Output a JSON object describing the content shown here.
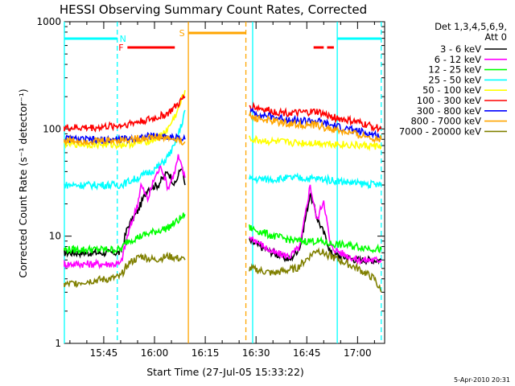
{
  "chart_data": {
    "type": "line",
    "title": "HESSI Observing Summary Count Rates, Corrected",
    "xlabel": "Start Time (27-Jul-05 15:33:22)",
    "ylabel": "Corrected Count Rate (s⁻¹ detector⁻¹)",
    "y_scale": "log",
    "ylim": [
      1,
      1000
    ],
    "xlim_minutes": [
      "15:33:22",
      "17:08"
    ],
    "x_ticks": [
      "15:45",
      "16:00",
      "16:15",
      "16:30",
      "16:45",
      "17:00"
    ],
    "y_ticks": [
      "1",
      "10",
      "100",
      "1000"
    ],
    "date_stamp": "5-Apr-2010 20:31",
    "legend_header": [
      "Det 1,3,4,5,6,9,",
      "Att 0"
    ],
    "legend_position": "right",
    "gaps": [
      {
        "from": "16:10",
        "to": "16:27",
        "reason": "data gap (SAA)"
      }
    ],
    "series": [
      {
        "name": "3 - 6 keV",
        "color": "#000000",
        "points": [
          [
            "15:33",
            7
          ],
          [
            "15:50",
            7
          ],
          [
            "15:52",
            12
          ],
          [
            "15:55",
            17
          ],
          [
            "15:58",
            28
          ],
          [
            "16:01",
            30
          ],
          [
            "16:04",
            40
          ],
          [
            "16:06",
            30
          ],
          [
            "16:08",
            45
          ],
          [
            "16:09",
            30
          ],
          [
            "16:27",
            null
          ],
          [
            "16:28",
            9
          ],
          [
            "16:35",
            7
          ],
          [
            "16:40",
            6
          ],
          [
            "16:43",
            8
          ],
          [
            "16:46",
            25
          ],
          [
            "16:48",
            15
          ],
          [
            "16:51",
            9
          ],
          [
            "16:52",
            7
          ],
          [
            "16:55",
            6.5
          ],
          [
            "17:00",
            6
          ],
          [
            "17:07",
            6
          ]
        ]
      },
      {
        "name": "6 - 12 keV",
        "color": "#ff00ff",
        "points": [
          [
            "15:33",
            5.5
          ],
          [
            "15:50",
            5.5
          ],
          [
            "15:52",
            10
          ],
          [
            "15:55",
            20
          ],
          [
            "15:56",
            30
          ],
          [
            "15:58",
            22
          ],
          [
            "16:00",
            35
          ],
          [
            "16:02",
            45
          ],
          [
            "16:04",
            28
          ],
          [
            "16:06",
            40
          ],
          [
            "16:07",
            55
          ],
          [
            "16:09",
            35
          ],
          [
            "16:27",
            null
          ],
          [
            "16:28",
            10
          ],
          [
            "16:35",
            7
          ],
          [
            "16:40",
            6.5
          ],
          [
            "16:43",
            8
          ],
          [
            "16:46",
            30
          ],
          [
            "16:48",
            14
          ],
          [
            "16:50",
            22
          ],
          [
            "16:52",
            8
          ],
          [
            "16:55",
            7
          ],
          [
            "17:00",
            6
          ],
          [
            "17:07",
            6
          ]
        ]
      },
      {
        "name": "12 - 25 keV",
        "color": "#00ff00",
        "points": [
          [
            "15:33",
            7.5
          ],
          [
            "15:50",
            7.5
          ],
          [
            "15:52",
            9
          ],
          [
            "15:56",
            10
          ],
          [
            "16:00",
            11
          ],
          [
            "16:04",
            12
          ],
          [
            "16:07",
            14
          ],
          [
            "16:09",
            16
          ],
          [
            "16:27",
            null
          ],
          [
            "16:28",
            12
          ],
          [
            "16:35",
            10
          ],
          [
            "16:42",
            9
          ],
          [
            "16:48",
            9
          ],
          [
            "16:52",
            8.5
          ],
          [
            "17:00",
            8
          ],
          [
            "17:07",
            7.5
          ]
        ]
      },
      {
        "name": "25 - 50 keV",
        "color": "#00ffff",
        "points": [
          [
            "15:33",
            30
          ],
          [
            "15:50",
            30
          ],
          [
            "15:52",
            32
          ],
          [
            "15:56",
            36
          ],
          [
            "16:00",
            42
          ],
          [
            "16:03",
            50
          ],
          [
            "16:06",
            70
          ],
          [
            "16:08",
            110
          ],
          [
            "16:09",
            150
          ],
          [
            "16:27",
            null
          ],
          [
            "16:28",
            34
          ],
          [
            "16:35",
            34
          ],
          [
            "16:42",
            35
          ],
          [
            "16:50",
            34
          ],
          [
            "17:00",
            31
          ],
          [
            "17:07",
            30
          ]
        ]
      },
      {
        "name": "50 - 100 keV",
        "color": "#ffff00",
        "points": [
          [
            "15:33",
            73
          ],
          [
            "15:50",
            71
          ],
          [
            "15:53",
            73
          ],
          [
            "15:57",
            76
          ],
          [
            "16:01",
            82
          ],
          [
            "16:04",
            100
          ],
          [
            "16:07",
            150
          ],
          [
            "16:09",
            230
          ],
          [
            "16:27",
            null
          ],
          [
            "16:28",
            80
          ],
          [
            "16:35",
            76
          ],
          [
            "16:42",
            74
          ],
          [
            "16:50",
            74
          ],
          [
            "17:00",
            70
          ],
          [
            "17:07",
            69
          ]
        ]
      },
      {
        "name": "100 - 300 keV",
        "color": "#ff0000",
        "points": [
          [
            "15:33",
            102
          ],
          [
            "15:43",
            103
          ],
          [
            "15:50",
            108
          ],
          [
            "15:57",
            120
          ],
          [
            "16:00",
            125
          ],
          [
            "16:04",
            140
          ],
          [
            "16:07",
            170
          ],
          [
            "16:09",
            200
          ],
          [
            "16:27",
            null
          ],
          [
            "16:28",
            165
          ],
          [
            "16:35",
            145
          ],
          [
            "16:42",
            140
          ],
          [
            "16:48",
            145
          ],
          [
            "16:52",
            130
          ],
          [
            "17:00",
            115
          ],
          [
            "17:07",
            100
          ]
        ]
      },
      {
        "name": "300 - 800 keV",
        "color": "#0000ff",
        "points": [
          [
            "15:33",
            81
          ],
          [
            "15:43",
            78
          ],
          [
            "15:50",
            80
          ],
          [
            "15:57",
            84
          ],
          [
            "16:00",
            86
          ],
          [
            "16:04",
            85
          ],
          [
            "16:07",
            82
          ],
          [
            "16:09",
            80
          ],
          [
            "16:27",
            null
          ],
          [
            "16:28",
            145
          ],
          [
            "16:35",
            128
          ],
          [
            "16:42",
            120
          ],
          [
            "16:48",
            118
          ],
          [
            "16:52",
            108
          ],
          [
            "17:00",
            95
          ],
          [
            "17:07",
            85
          ]
        ]
      },
      {
        "name": "800 - 7000 keV",
        "color": "#ffa500",
        "points": [
          [
            "15:33",
            78
          ],
          [
            "15:43",
            77
          ],
          [
            "15:50",
            79
          ],
          [
            "15:57",
            82
          ],
          [
            "16:00",
            84
          ],
          [
            "16:04",
            82
          ],
          [
            "16:07",
            78
          ],
          [
            "16:09",
            76
          ],
          [
            "16:27",
            null
          ],
          [
            "16:28",
            130
          ],
          [
            "16:35",
            118
          ],
          [
            "16:42",
            110
          ],
          [
            "16:48",
            108
          ],
          [
            "16:52",
            100
          ],
          [
            "17:00",
            88
          ],
          [
            "17:07",
            80
          ]
        ]
      },
      {
        "name": "7000 - 20000 keV",
        "color": "#808000",
        "points": [
          [
            "15:33",
            3.5
          ],
          [
            "15:40",
            3.8
          ],
          [
            "15:47",
            4.0
          ],
          [
            "15:50",
            4.2
          ],
          [
            "15:52",
            5.5
          ],
          [
            "15:56",
            6.5
          ],
          [
            "16:00",
            6.0
          ],
          [
            "16:04",
            6.5
          ],
          [
            "16:09",
            6.0
          ],
          [
            "16:27",
            null
          ],
          [
            "16:28",
            5.0
          ],
          [
            "16:35",
            4.5
          ],
          [
            "16:42",
            5.0
          ],
          [
            "16:48",
            7.5
          ],
          [
            "16:52",
            6.5
          ],
          [
            "17:00",
            5.0
          ],
          [
            "17:05",
            4.0
          ],
          [
            "17:07",
            3.0
          ]
        ]
      }
    ],
    "flags": [
      {
        "letter": "N",
        "color": "#00ffff",
        "kind": "night",
        "segments": [
          [
            "15:33",
            "15:49"
          ],
          [
            "16:54",
            "17:07"
          ]
        ]
      },
      {
        "letter": "F",
        "color": "#ff0000",
        "kind": "flare",
        "segments": [
          [
            "15:52",
            "16:06"
          ],
          [
            "16:47",
            "16:50"
          ],
          [
            "16:51",
            "16:53"
          ]
        ]
      },
      {
        "letter": "S",
        "color": "#ffa500",
        "kind": "saa",
        "segments": [
          [
            "16:10",
            "16:27"
          ]
        ]
      }
    ],
    "vertical_lines": [
      {
        "color": "#00ffff",
        "style": "solid",
        "time": "15:33"
      },
      {
        "color": "#00ffff",
        "style": "dashed",
        "time": "15:49"
      },
      {
        "color": "#ffa500",
        "style": "solid",
        "time": "16:10"
      },
      {
        "color": "#ffa500",
        "style": "dashed",
        "time": "16:27"
      },
      {
        "color": "#00ffff",
        "style": "solid",
        "time": "16:29"
      },
      {
        "color": "#00ffff",
        "style": "solid",
        "time": "16:54"
      },
      {
        "color": "#00ffff",
        "style": "dashed",
        "time": "17:07"
      }
    ]
  }
}
